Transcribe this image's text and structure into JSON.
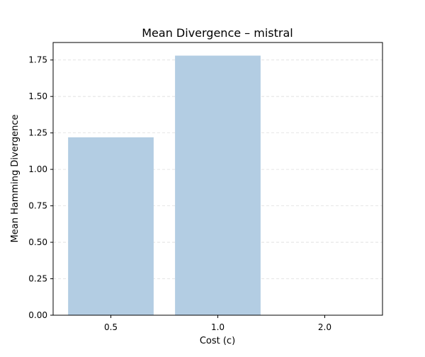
{
  "chart_data": {
    "type": "bar",
    "title": "Mean Divergence – mistral",
    "xlabel": "Cost (c)",
    "ylabel": "Mean Hamming Divergence",
    "categories": [
      "0.5",
      "1.0",
      "2.0"
    ],
    "values": [
      1.22,
      1.78,
      0.0
    ],
    "ylim": [
      0,
      1.87
    ],
    "yticks": [
      "0.00",
      "0.25",
      "0.50",
      "0.75",
      "1.00",
      "1.25",
      "1.50",
      "1.75"
    ],
    "grid": "y-dashed",
    "bar_color": "#b3cde3"
  }
}
